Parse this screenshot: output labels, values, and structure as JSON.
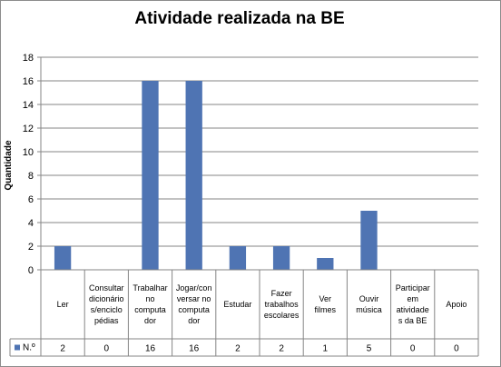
{
  "chart_data": {
    "type": "bar",
    "title": "Atividade realizada na BE",
    "xlabel": "",
    "ylabel": "Quantidade",
    "ylim": [
      0,
      18
    ],
    "yticks": [
      0,
      2,
      4,
      6,
      8,
      10,
      12,
      14,
      16,
      18
    ],
    "grid": true,
    "categories": [
      "Ler",
      "Consultar dicionário s/enciclo pédias",
      "Trabalhar no computa dor",
      "Jogar/con versar no computa dor",
      "Estudar",
      "Fazer trabalhos escolares",
      "Ver filmes",
      "Ouvir música",
      "Participar em atividade s da BE",
      "Apoio"
    ],
    "category_lines": [
      [
        "Ler"
      ],
      [
        "Consultar",
        "dicionário",
        "s/enciclo",
        "pédias"
      ],
      [
        "Trabalhar",
        "no",
        "computa",
        "dor"
      ],
      [
        "Jogar/con",
        "versar no",
        "computa",
        "dor"
      ],
      [
        "Estudar"
      ],
      [
        "Fazer",
        "trabalhos",
        "escolares"
      ],
      [
        "Ver",
        "filmes"
      ],
      [
        "Ouvir",
        "música"
      ],
      [
        "Participar",
        "em",
        "atividade",
        "s da BE"
      ],
      [
        "Apoio"
      ]
    ],
    "series": [
      {
        "name": "N.º",
        "color": "#4f74b3",
        "values": [
          2,
          0,
          16,
          16,
          2,
          2,
          1,
          5,
          0,
          0
        ]
      }
    ],
    "legend": "data-table-left"
  }
}
